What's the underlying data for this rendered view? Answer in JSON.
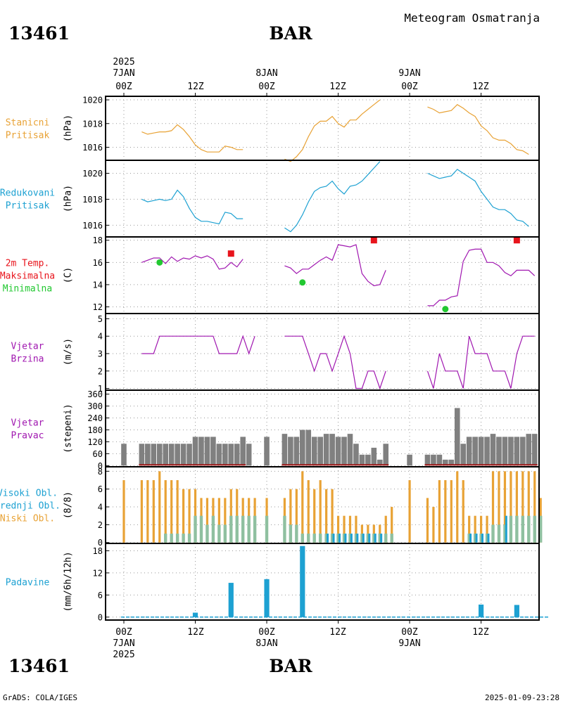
{
  "header": {
    "station": "13461",
    "name": "BAR",
    "title": "Meteogram Osmatranja"
  },
  "footer": {
    "credit": "GrADS: COLA/IGES",
    "timestamp": "2025-01-09-23:28"
  },
  "time_axis": {
    "year": "2025",
    "day_labels": [
      "7JAN",
      "8JAN",
      "9JAN"
    ],
    "hour_labels": [
      "00Z",
      "12Z",
      "00Z",
      "12Z",
      "00Z",
      "12Z"
    ]
  },
  "colors": {
    "orange": "#e8a235",
    "cyan": "#1da1d2",
    "red": "#e8141c",
    "green": "#22c831",
    "purple": "#a017b0",
    "gray": "#808080",
    "darkred": "#a01818"
  },
  "chart_data": [
    {
      "type": "line",
      "panel": "stanicni",
      "label_lines": [
        "Stanicni",
        "Pritisak"
      ],
      "ylabel": "(hPa)",
      "yticks": [
        1016,
        1018,
        1020
      ],
      "ylim": [
        1014.9,
        1020.3
      ],
      "x_hours": [
        0,
        1,
        2,
        3,
        4,
        5,
        6,
        7,
        8,
        9,
        10,
        11,
        12,
        13,
        14,
        15,
        16,
        17,
        18,
        19,
        20,
        21,
        22,
        23,
        24,
        25,
        26,
        27,
        28,
        29,
        30,
        31,
        32,
        33,
        34,
        35,
        36,
        37,
        38,
        39,
        40,
        41,
        42,
        43,
        44,
        45,
        46,
        47,
        48,
        49,
        50,
        51,
        52,
        53,
        54,
        55,
        56,
        57,
        58,
        59,
        60,
        61,
        62,
        63,
        64,
        65,
        66,
        67,
        68,
        69,
        70,
        71
      ],
      "values": [
        null,
        null,
        null,
        1017.3,
        1017.1,
        1017.2,
        1017.3,
        1017.3,
        1017.4,
        1017.9,
        1017.5,
        1016.9,
        1016.2,
        1015.8,
        1015.6,
        1015.6,
        1015.6,
        1016.1,
        1016.0,
        1015.8,
        1015.8,
        null,
        null,
        null,
        null,
        null,
        null,
        1015.0,
        1014.8,
        1015.2,
        1015.8,
        1016.9,
        1017.8,
        1018.2,
        1018.2,
        1018.6,
        1018.0,
        1017.7,
        1018.3,
        1018.3,
        1018.8,
        1019.2,
        1019.6,
        1020.0,
        null,
        null,
        null,
        null,
        null,
        null,
        null,
        1019.4,
        1019.2,
        1018.9,
        1019.0,
        1019.1,
        1019.6,
        1019.3,
        1018.9,
        1018.6,
        1017.8,
        1017.4,
        1016.8,
        1016.6,
        1016.6,
        1016.3,
        1015.8,
        1015.7,
        1015.4,
        null,
        null,
        null
      ]
    },
    {
      "type": "line",
      "panel": "redukovani",
      "label_lines": [
        "Redukovani",
        "Pritisak"
      ],
      "ylabel": "(hPa)",
      "yticks": [
        1016,
        1018,
        1020
      ],
      "ylim": [
        1015.1,
        1021.0
      ],
      "x_hours": [
        0,
        1,
        2,
        3,
        4,
        5,
        6,
        7,
        8,
        9,
        10,
        11,
        12,
        13,
        14,
        15,
        16,
        17,
        18,
        19,
        20,
        21,
        22,
        23,
        24,
        25,
        26,
        27,
        28,
        29,
        30,
        31,
        32,
        33,
        34,
        35,
        36,
        37,
        38,
        39,
        40,
        41,
        42,
        43,
        44,
        45,
        46,
        47,
        48,
        49,
        50,
        51,
        52,
        53,
        54,
        55,
        56,
        57,
        58,
        59,
        60,
        61,
        62,
        63,
        64,
        65,
        66,
        67,
        68,
        69,
        70,
        71
      ],
      "values": [
        null,
        null,
        null,
        1018.0,
        1017.8,
        1017.9,
        1018.0,
        1017.9,
        1018.0,
        1018.7,
        1018.2,
        1017.3,
        1016.6,
        1016.3,
        1016.3,
        1016.2,
        1016.1,
        1017.0,
        1016.9,
        1016.5,
        1016.5,
        null,
        null,
        null,
        null,
        null,
        null,
        1015.8,
        1015.5,
        1016.0,
        1016.8,
        1017.8,
        1018.6,
        1018.9,
        1019.0,
        1019.4,
        1018.8,
        1018.4,
        1019.0,
        1019.1,
        1019.4,
        1019.9,
        1020.4,
        1020.9,
        null,
        null,
        null,
        null,
        null,
        null,
        null,
        1020.0,
        1019.8,
        1019.6,
        1019.7,
        1019.8,
        1020.3,
        1020.0,
        1019.7,
        1019.4,
        1018.6,
        1018.0,
        1017.4,
        1017.2,
        1017.2,
        1016.9,
        1016.4,
        1016.3,
        1015.9,
        null,
        null,
        null
      ]
    },
    {
      "type": "line",
      "panel": "temperatura",
      "label_lines": [
        "2m Temp.",
        "Maksimalna",
        "Minimalna"
      ],
      "ylabel": "(C)",
      "yticks": [
        12,
        14,
        16,
        18
      ],
      "ylim": [
        11.4,
        18.3
      ],
      "x_hours": [
        0,
        1,
        2,
        3,
        4,
        5,
        6,
        7,
        8,
        9,
        10,
        11,
        12,
        13,
        14,
        15,
        16,
        17,
        18,
        19,
        20,
        21,
        22,
        23,
        24,
        25,
        26,
        27,
        28,
        29,
        30,
        31,
        32,
        33,
        34,
        35,
        36,
        37,
        38,
        39,
        40,
        41,
        42,
        43,
        44,
        45,
        46,
        47,
        48,
        49,
        50,
        51,
        52,
        53,
        54,
        55,
        56,
        57,
        58,
        59,
        60,
        61,
        62,
        63,
        64,
        65,
        66,
        67,
        68,
        69,
        70,
        71
      ],
      "values": [
        null,
        null,
        null,
        16.0,
        16.2,
        16.4,
        16.4,
        15.9,
        16.5,
        16.1,
        16.4,
        16.3,
        16.6,
        16.4,
        16.6,
        16.3,
        15.4,
        15.5,
        16.0,
        15.6,
        16.3,
        null,
        null,
        null,
        null,
        null,
        null,
        15.7,
        15.5,
        15.0,
        15.4,
        15.4,
        15.8,
        16.2,
        16.5,
        16.2,
        17.6,
        17.5,
        17.4,
        17.6,
        15.0,
        14.3,
        13.9,
        14.0,
        15.3,
        null,
        null,
        null,
        null,
        null,
        null,
        12.1,
        12.1,
        12.6,
        12.6,
        12.9,
        13.0,
        16.1,
        17.1,
        17.2,
        17.2,
        16.0,
        16.0,
        15.7,
        15.1,
        14.8,
        15.3,
        15.3,
        15.3,
        14.8,
        null,
        null
      ],
      "maksimalna": [
        {
          "hour": 18,
          "value": 16.8
        },
        {
          "hour": 42,
          "value": 18.0
        },
        {
          "hour": 66,
          "value": 18.0
        }
      ],
      "minimalna": [
        {
          "hour": 6,
          "value": 16.0
        },
        {
          "hour": 30,
          "value": 14.2
        },
        {
          "hour": 54,
          "value": 11.8
        }
      ]
    },
    {
      "type": "line",
      "panel": "vjetar_brzina",
      "label_lines": [
        "Vjetar",
        "Brzina"
      ],
      "ylabel": "(m/s)",
      "yticks": [
        1,
        2,
        3,
        4,
        5
      ],
      "ylim": [
        0.9,
        5.3
      ],
      "x_hours": [
        0,
        1,
        2,
        3,
        4,
        5,
        6,
        7,
        8,
        9,
        10,
        11,
        12,
        13,
        14,
        15,
        16,
        17,
        18,
        19,
        20,
        21,
        22,
        23,
        24,
        25,
        26,
        27,
        28,
        29,
        30,
        31,
        32,
        33,
        34,
        35,
        36,
        37,
        38,
        39,
        40,
        41,
        42,
        43,
        44,
        45,
        46,
        47,
        48,
        49,
        50,
        51,
        52,
        53,
        54,
        55,
        56,
        57,
        58,
        59,
        60,
        61,
        62,
        63,
        64,
        65,
        66,
        67,
        68,
        69,
        70,
        71
      ],
      "values": [
        null,
        null,
        null,
        3,
        3,
        3,
        4,
        4,
        4,
        4,
        4,
        4,
        4,
        4,
        4,
        4,
        3,
        3,
        3,
        3,
        4,
        3,
        4,
        null,
        null,
        null,
        null,
        4,
        4,
        4,
        4,
        3,
        2,
        3,
        3,
        2,
        3,
        4,
        3,
        1,
        1,
        2,
        2,
        1,
        2,
        null,
        null,
        null,
        null,
        null,
        null,
        2,
        1,
        3,
        2,
        2,
        2,
        1,
        4,
        3,
        3,
        3,
        2,
        2,
        2,
        1,
        3,
        4,
        4,
        4,
        null,
        null
      ]
    },
    {
      "type": "bar",
      "panel": "vjetar_pravac",
      "label_lines": [
        "Vjetar",
        "Pravac"
      ],
      "ylabel": "(stepeni)",
      "yticks": [
        0,
        60,
        120,
        180,
        240,
        300,
        360
      ],
      "ylim": [
        -6,
        380
      ],
      "x_hours": [
        0,
        1,
        2,
        3,
        4,
        5,
        6,
        7,
        8,
        9,
        10,
        11,
        12,
        13,
        14,
        15,
        16,
        17,
        18,
        19,
        20,
        21,
        22,
        23,
        24,
        25,
        26,
        27,
        28,
        29,
        30,
        31,
        32,
        33,
        34,
        35,
        36,
        37,
        38,
        39,
        40,
        41,
        42,
        43,
        44,
        45,
        46,
        47,
        48,
        49,
        50,
        51,
        52,
        53,
        54,
        55,
        56,
        57,
        58,
        59,
        60,
        61,
        62,
        63,
        64,
        65,
        66,
        67,
        68,
        69,
        70,
        71
      ],
      "values": [
        110,
        null,
        null,
        110,
        110,
        110,
        110,
        110,
        110,
        110,
        110,
        110,
        145,
        145,
        145,
        145,
        110,
        110,
        110,
        110,
        145,
        110,
        null,
        null,
        145,
        null,
        null,
        160,
        145,
        145,
        180,
        180,
        145,
        145,
        160,
        160,
        145,
        145,
        160,
        110,
        55,
        55,
        90,
        30,
        110,
        null,
        null,
        null,
        55,
        null,
        null,
        55,
        55,
        55,
        30,
        30,
        290,
        110,
        145,
        145,
        145,
        145,
        160,
        145,
        145,
        145,
        145,
        145,
        160,
        160,
        null,
        null
      ]
    },
    {
      "type": "bar",
      "panel": "oblacnost",
      "label_lines": [
        "Visoki Obl.",
        "Srednji Obl.",
        "Niski Obl."
      ],
      "ylabel": "(8/8)",
      "yticks": [
        0,
        2,
        4,
        6,
        8
      ],
      "ylim": [
        -0.1,
        8.5
      ],
      "x_hours": [
        0,
        1,
        2,
        3,
        4,
        5,
        6,
        7,
        8,
        9,
        10,
        11,
        12,
        13,
        14,
        15,
        16,
        17,
        18,
        19,
        20,
        21,
        22,
        23,
        24,
        25,
        26,
        27,
        28,
        29,
        30,
        31,
        32,
        33,
        34,
        35,
        36,
        37,
        38,
        39,
        40,
        41,
        42,
        43,
        44,
        45,
        46,
        47,
        48,
        49,
        50,
        51,
        52,
        53,
        54,
        55,
        56,
        57,
        58,
        59,
        60,
        61,
        62,
        63,
        64,
        65,
        66,
        67,
        68,
        69,
        70,
        71
      ],
      "niski": [
        7,
        null,
        null,
        7,
        7,
        7,
        8,
        7,
        7,
        7,
        6,
        6,
        6,
        5,
        5,
        5,
        5,
        5,
        6,
        6,
        5,
        5,
        5,
        null,
        5,
        null,
        null,
        5,
        6,
        6,
        8,
        7,
        6,
        7,
        6,
        6,
        3,
        3,
        3,
        3,
        2,
        2,
        2,
        2,
        3,
        4,
        null,
        null,
        7,
        null,
        null,
        5,
        4,
        7,
        7,
        7,
        8,
        7,
        3,
        3,
        3,
        3,
        8,
        8,
        8,
        8,
        8,
        8,
        8,
        8,
        5,
        null
      ],
      "srednji": [
        0,
        null,
        null,
        0,
        0,
        0,
        0,
        1,
        1,
        1,
        1,
        1,
        3,
        3,
        2,
        3,
        2,
        2,
        3,
        3,
        3,
        3,
        3,
        null,
        3,
        null,
        null,
        3,
        2,
        2,
        1,
        1,
        1,
        1,
        1,
        1,
        1,
        1,
        1,
        1,
        1,
        1,
        1,
        1,
        1,
        1,
        null,
        null,
        0,
        null,
        null,
        0,
        0,
        0,
        0,
        0,
        0,
        0,
        1,
        1,
        1,
        1,
        2,
        2,
        2,
        3,
        3,
        3,
        3,
        3,
        3,
        null
      ],
      "visoki": [
        0,
        null,
        null,
        0,
        0,
        0,
        0,
        0,
        0,
        0,
        0,
        0,
        0,
        0,
        0,
        0,
        0,
        0,
        0,
        0,
        0,
        0,
        0,
        null,
        0,
        null,
        null,
        0,
        0,
        0,
        0,
        0,
        0,
        0,
        1,
        1,
        1,
        1,
        1,
        1,
        1,
        1,
        1,
        1,
        0,
        0,
        null,
        null,
        0,
        null,
        null,
        0,
        0,
        0,
        0,
        0,
        0,
        0,
        1,
        1,
        1,
        1,
        0,
        0,
        3,
        0,
        0,
        0,
        0,
        0,
        0,
        null
      ]
    },
    {
      "type": "bar",
      "panel": "padavine",
      "label_lines": [
        "Padavine"
      ],
      "ylabel": "(mm/6h/12h)",
      "yticks": [
        0,
        6,
        12,
        18
      ],
      "ylim": [
        -0.8,
        20
      ],
      "bars": [
        {
          "hour": 12,
          "value": 1.2
        },
        {
          "hour": 18,
          "value": 9.3
        },
        {
          "hour": 24,
          "value": 10.3
        },
        {
          "hour": 30,
          "value": 19.3
        },
        {
          "hour": 60,
          "value": 3.4
        },
        {
          "hour": 66,
          "value": 3.3
        }
      ]
    }
  ]
}
